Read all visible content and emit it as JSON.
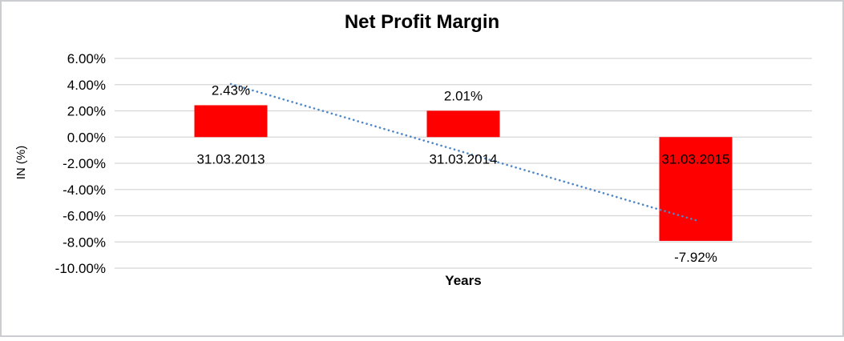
{
  "chart_data": {
    "type": "bar",
    "title": "Net Profit Margin",
    "xlabel": "Years",
    "ylabel": "IN (%)",
    "categories": [
      "31.03.2013",
      "31.03.2014",
      "31.03.2015"
    ],
    "values": [
      2.43,
      2.01,
      -7.92
    ],
    "data_labels": [
      "2.43%",
      "2.01%",
      "-7.92%"
    ],
    "yticks": [
      "6.00%",
      "4.00%",
      "2.00%",
      "0.00%",
      "-2.00%",
      "-4.00%",
      "-6.00%",
      "-8.00%",
      "-10.00%"
    ],
    "ytick_values": [
      6,
      4,
      2,
      0,
      -2,
      -4,
      -6,
      -8,
      -10
    ],
    "ylim": [
      -10,
      6
    ],
    "grid": true,
    "legend": false,
    "bar_color": "#ff0000",
    "grid_color": "#d6d6d6",
    "text_color": "#000000",
    "frame_color": "#cbcdd0",
    "trendline": {
      "type": "linear",
      "style": "dotted",
      "color": "#4e87c7",
      "start_value": 4.05,
      "end_value": -6.34
    }
  }
}
